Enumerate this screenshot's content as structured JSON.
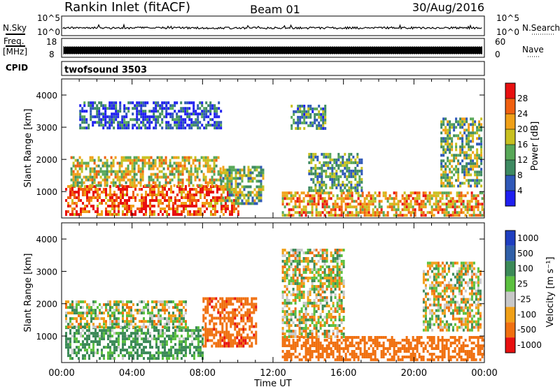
{
  "header": {
    "station": "Rankin Inlet (fitACF)",
    "beam": "Beam 01",
    "date": "30/Aug/2016"
  },
  "panels": {
    "nsky": {
      "label": "N.Sky",
      "left_ticks": [
        "10^5",
        "10^0"
      ],
      "right_ticks": [
        "10^5",
        "10^0"
      ],
      "right_label": "N.Search"
    },
    "freq": {
      "label_top": "Freq.",
      "label_bottom": "[MHz]",
      "left_ticks": [
        "18",
        "8"
      ],
      "right_ticks": [
        "60",
        "0"
      ],
      "right_label": "Nave"
    },
    "cpid": {
      "label": "CPID",
      "text": "twofsound 3503"
    }
  },
  "chart_data": [
    {
      "type": "heatmap",
      "name": "Power",
      "ylabel": "Slant Range [km]",
      "xlim": [
        "00:00",
        "24:00"
      ],
      "ylim": [
        180,
        4500
      ],
      "x_ticks": [
        "00:00",
        "04:00",
        "08:00",
        "12:00",
        "16:00",
        "20:00",
        "00:00"
      ],
      "y_ticks": [
        1000,
        2000,
        3000,
        4000
      ],
      "colorbar": {
        "label": "Power [dB]",
        "ticks": [
          4,
          8,
          12,
          16,
          20,
          24,
          28
        ],
        "colors": [
          "#1f1ff0",
          "#2f58b8",
          "#3e8a62",
          "#58a858",
          "#c8c020",
          "#f0a018",
          "#f06010",
          "#e81010"
        ]
      },
      "regions": [
        {
          "t": [
            0.2,
            10.0
          ],
          "r": [
            300,
            1200
          ],
          "power": 27
        },
        {
          "t": [
            0.5,
            9.0
          ],
          "r": [
            1200,
            2100
          ],
          "power": 18
        },
        {
          "t": [
            9.0,
            11.5
          ],
          "r": [
            600,
            1800
          ],
          "power": 14
        },
        {
          "t": [
            12.5,
            24.0
          ],
          "r": [
            300,
            1000
          ],
          "power": 22
        },
        {
          "t": [
            14.0,
            17.0
          ],
          "r": [
            1000,
            2200
          ],
          "power": 12
        },
        {
          "t": [
            13.0,
            15.0
          ],
          "r": [
            3000,
            3700
          ],
          "power": 10
        },
        {
          "t": [
            21.5,
            23.8
          ],
          "r": [
            1200,
            3300
          ],
          "power": 14
        },
        {
          "t": [
            1.0,
            9.0
          ],
          "r": [
            3000,
            3800
          ],
          "power": 6
        }
      ]
    },
    {
      "type": "heatmap",
      "name": "Velocity",
      "ylabel": "Slant Range [km]",
      "xlabel": "Time UT",
      "xlim": [
        "00:00",
        "24:00"
      ],
      "ylim": [
        180,
        4500
      ],
      "x_ticks": [
        "00:00",
        "04:00",
        "08:00",
        "12:00",
        "16:00",
        "20:00",
        "00:00"
      ],
      "y_ticks": [
        1000,
        2000,
        3000,
        4000
      ],
      "colorbar": {
        "label": "Velocity [m s⁻¹]",
        "ticks": [
          "1000",
          "500",
          "100",
          "25",
          "-25",
          "-100",
          "-500",
          "-1000"
        ],
        "colors": [
          "#1f3fc0",
          "#3060a8",
          "#3c8a58",
          "#5cc040",
          "#c8c8c8",
          "#f0a018",
          "#f07010",
          "#e81010"
        ]
      },
      "regions": [
        {
          "t": [
            0.2,
            8.0
          ],
          "r": [
            300,
            1300
          ],
          "velocity": 150
        },
        {
          "t": [
            0.2,
            7.0
          ],
          "r": [
            1300,
            2100
          ],
          "velocity": 20
        },
        {
          "t": [
            8.0,
            11.0
          ],
          "r": [
            700,
            2200
          ],
          "velocity": -400
        },
        {
          "t": [
            12.5,
            24.0
          ],
          "r": [
            300,
            1000
          ],
          "velocity": -350
        },
        {
          "t": [
            12.5,
            16.0
          ],
          "r": [
            1000,
            3700
          ],
          "velocity": 0
        },
        {
          "t": [
            20.5,
            23.8
          ],
          "r": [
            1200,
            3300
          ],
          "velocity": 0
        }
      ]
    }
  ]
}
